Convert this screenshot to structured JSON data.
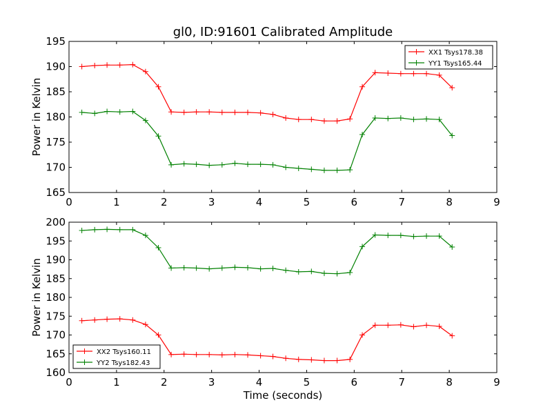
{
  "title": "gl0, ID:91601 Calibrated Amplitude",
  "colors": {
    "red": "#ff0000",
    "green": "#008000",
    "axes": "#000000"
  },
  "chart_data": [
    {
      "type": "line",
      "title": "gl0, ID:91601 Calibrated Amplitude",
      "xlabel": "",
      "ylabel": "Power in Kelvin",
      "xlim": [
        0,
        9
      ],
      "ylim": [
        165,
        195
      ],
      "xticks": [
        "0",
        "1",
        "2",
        "3",
        "4",
        "5",
        "6",
        "7",
        "8",
        "9"
      ],
      "yticks": [
        "165",
        "170",
        "175",
        "180",
        "185",
        "190",
        "195"
      ],
      "grid": false,
      "legend_position": "top-right",
      "x": [
        0.27,
        0.54,
        0.8,
        1.07,
        1.34,
        1.61,
        1.88,
        2.15,
        2.42,
        2.68,
        2.95,
        3.22,
        3.49,
        3.76,
        4.03,
        4.29,
        4.56,
        4.83,
        5.1,
        5.37,
        5.64,
        5.91,
        6.17,
        6.44,
        6.71,
        6.98,
        7.25,
        7.52,
        7.79,
        8.06
      ],
      "series": [
        {
          "name": "XX1 Tsys178.38",
          "color": "#ff0000",
          "values": [
            190.0,
            190.2,
            190.3,
            190.3,
            190.4,
            189.0,
            186.0,
            181.0,
            180.9,
            181.0,
            181.0,
            180.9,
            180.9,
            180.9,
            180.8,
            180.5,
            179.8,
            179.5,
            179.5,
            179.2,
            179.2,
            179.6,
            186.0,
            188.8,
            188.7,
            188.6,
            188.6,
            188.6,
            188.3,
            185.8
          ]
        },
        {
          "name": "YY1 Tsys165.44",
          "color": "#008000",
          "values": [
            180.9,
            180.7,
            181.1,
            181.0,
            181.1,
            179.3,
            176.2,
            170.5,
            170.7,
            170.6,
            170.4,
            170.5,
            170.8,
            170.6,
            170.6,
            170.5,
            170.0,
            169.8,
            169.6,
            169.4,
            169.4,
            169.5,
            176.5,
            179.8,
            179.7,
            179.8,
            179.5,
            179.6,
            179.5,
            176.3
          ]
        }
      ]
    },
    {
      "type": "line",
      "title": "",
      "xlabel": "Time (seconds)",
      "ylabel": "Power in Kelvin",
      "xlim": [
        0,
        9
      ],
      "ylim": [
        160,
        200
      ],
      "xticks": [
        "0",
        "1",
        "2",
        "3",
        "4",
        "5",
        "6",
        "7",
        "8",
        "9"
      ],
      "yticks": [
        "160",
        "165",
        "170",
        "175",
        "180",
        "185",
        "190",
        "195",
        "200"
      ],
      "grid": false,
      "legend_position": "bottom-left",
      "x": [
        0.27,
        0.54,
        0.8,
        1.07,
        1.34,
        1.61,
        1.88,
        2.15,
        2.42,
        2.68,
        2.95,
        3.22,
        3.49,
        3.76,
        4.03,
        4.29,
        4.56,
        4.83,
        5.1,
        5.37,
        5.64,
        5.91,
        6.17,
        6.44,
        6.71,
        6.98,
        7.25,
        7.52,
        7.79,
        8.06
      ],
      "series": [
        {
          "name": "XX2 Tsys160.11",
          "color": "#ff0000",
          "values": [
            173.8,
            174.0,
            174.2,
            174.3,
            174.0,
            172.8,
            170.0,
            164.8,
            164.9,
            164.8,
            164.8,
            164.7,
            164.8,
            164.7,
            164.5,
            164.3,
            163.8,
            163.5,
            163.4,
            163.2,
            163.2,
            163.5,
            170.0,
            172.6,
            172.6,
            172.7,
            172.2,
            172.6,
            172.3,
            169.8
          ]
        },
        {
          "name": "YY2 Tsys182.43",
          "color": "#008000",
          "values": [
            197.8,
            198.0,
            198.1,
            198.0,
            198.0,
            196.5,
            193.2,
            187.8,
            187.9,
            187.8,
            187.6,
            187.8,
            188.0,
            187.9,
            187.6,
            187.7,
            187.2,
            186.8,
            186.9,
            186.4,
            186.3,
            186.6,
            193.5,
            196.6,
            196.5,
            196.5,
            196.2,
            196.3,
            196.3,
            193.4
          ]
        }
      ]
    }
  ]
}
